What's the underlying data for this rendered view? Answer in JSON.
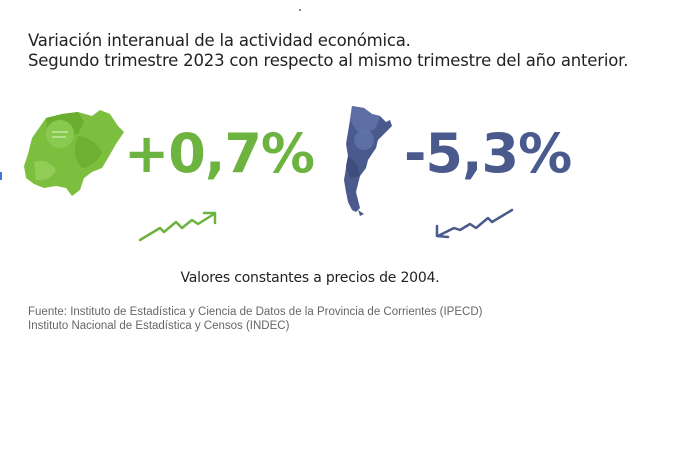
{
  "title": {
    "line1": "Variación interanual de la actividad económica.",
    "line2": "Segundo trimestre 2023 con respecto al mismo trimestre del año anterior."
  },
  "corrientes": {
    "value": "+0,7%",
    "color": "#6cb33f",
    "map_icon": "corrientes-map-icon",
    "trend_icon": "trend-up-arrow-icon"
  },
  "argentina": {
    "value": "-5,3%",
    "color": "#4a5a8c",
    "map_icon": "argentina-map-icon",
    "trend_icon": "trend-down-arrow-icon"
  },
  "note": "Valores constantes a precios de 2004.",
  "source": {
    "line1": "Fuente: Instituto de Estadística y Ciencia de Datos de la Provincia de Corrientes (IPECD)",
    "line2": "Instituto Nacional de Estadística y Censos (INDEC)"
  }
}
